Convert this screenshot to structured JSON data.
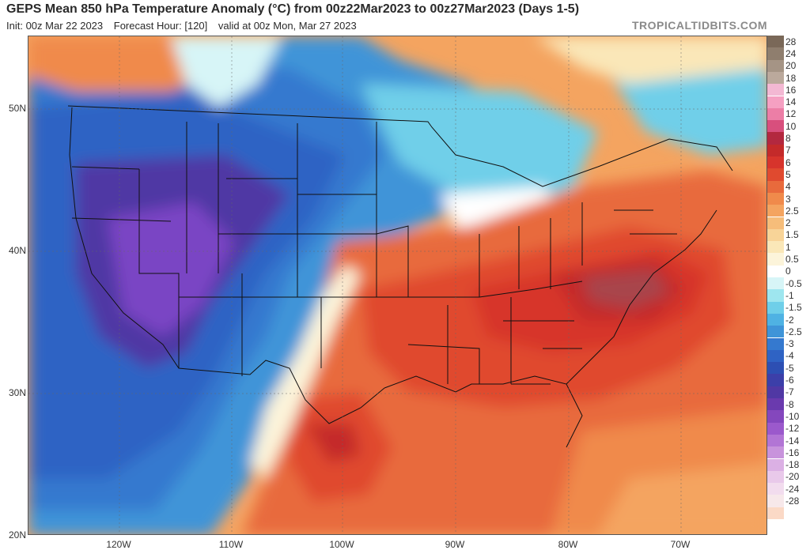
{
  "header": {
    "title": "GEPS Mean 850 hPa Temperature Anomaly (°C) from 00z22Mar2023 to 00z27Mar2023 (Days 1-5)",
    "init": "Init: 00z Mar 22 2023",
    "forecast_hour": "Forecast Hour: [120]",
    "valid": "valid at 00z Mon, Mar 27 2023",
    "brand": "TROPICALTIDBITS.COM"
  },
  "axes": {
    "lat_labels": [
      "50N",
      "40N",
      "30N",
      "20N"
    ],
    "lon_labels": [
      "120W",
      "110W",
      "100W",
      "90W",
      "80W",
      "70W"
    ]
  },
  "legend": {
    "levels": [
      {
        "label": "28",
        "color": "#7a6858"
      },
      {
        "label": "24",
        "color": "#8f7e6e"
      },
      {
        "label": "20",
        "color": "#a59485"
      },
      {
        "label": "18",
        "color": "#bba99c"
      },
      {
        "label": "16",
        "color": "#f3b8d3"
      },
      {
        "label": "14",
        "color": "#f5a0c2"
      },
      {
        "label": "12",
        "color": "#ec7ea6"
      },
      {
        "label": "10",
        "color": "#d84f7d"
      },
      {
        "label": "8",
        "color": "#b3283f"
      },
      {
        "label": "7",
        "color": "#c42a2a"
      },
      {
        "label": "6",
        "color": "#d7342c"
      },
      {
        "label": "5",
        "color": "#e04a2f"
      },
      {
        "label": "4",
        "color": "#e86a3c"
      },
      {
        "label": "3",
        "color": "#f08a4b"
      },
      {
        "label": "2.5",
        "color": "#f4a460"
      },
      {
        "label": "2",
        "color": "#f6bd7a"
      },
      {
        "label": "1.5",
        "color": "#f8d498"
      },
      {
        "label": "1",
        "color": "#fae7b8"
      },
      {
        "label": "0.5",
        "color": "#fcf4da"
      },
      {
        "label": "0",
        "color": "#ffffff"
      },
      {
        "label": "-0.5",
        "color": "#d7f5f7"
      },
      {
        "label": "-1",
        "color": "#9ee6ef"
      },
      {
        "label": "-1.5",
        "color": "#6fcfe9"
      },
      {
        "label": "-2",
        "color": "#4fb2e3"
      },
      {
        "label": "-2.5",
        "color": "#3f94d8"
      },
      {
        "label": "-3",
        "color": "#3579cf"
      },
      {
        "label": "-4",
        "color": "#2f63c4"
      },
      {
        "label": "-5",
        "color": "#2d4fb3"
      },
      {
        "label": "-6",
        "color": "#3c3fa9"
      },
      {
        "label": "-7",
        "color": "#5038a4"
      },
      {
        "label": "-8",
        "color": "#6a3aae"
      },
      {
        "label": "-10",
        "color": "#8447bd"
      },
      {
        "label": "-12",
        "color": "#9b59cc"
      },
      {
        "label": "-14",
        "color": "#b275d5"
      },
      {
        "label": "-16",
        "color": "#c893dc"
      },
      {
        "label": "-18",
        "color": "#dbb0e4"
      },
      {
        "label": "-20",
        "color": "#e9c9ea"
      },
      {
        "label": "-24",
        "color": "#f2dcee"
      },
      {
        "label": "-28",
        "color": "#f7e8ea"
      },
      {
        "label": "",
        "color": "#fbd9c6"
      }
    ]
  },
  "colors": {
    "ocean_base": "#ee6a37",
    "warm_dark": "#c42a2a",
    "cold_purple": "#7a45c4",
    "cold_blue": "#2f63c4",
    "boundary": "#111111"
  }
}
